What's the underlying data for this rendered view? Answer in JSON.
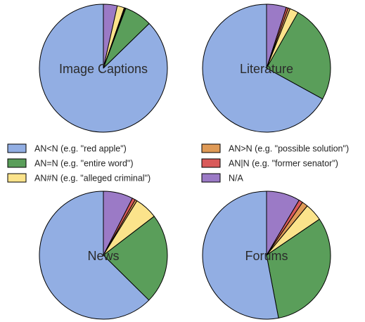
{
  "chart_data": {
    "type": "pie",
    "legend": {
      "placement": "center",
      "entries": [
        {
          "key": "an_lt_n",
          "label": "AN<N (e.g. \"red apple\")",
          "color": "#92aee3"
        },
        {
          "key": "an_eq_n",
          "label": "AN=N (e.g. \"entire word\")",
          "color": "#5a9e5a"
        },
        {
          "key": "an_neq_n",
          "label": "AN#N (e.g. \"alleged criminal\")",
          "color": "#fbe38b"
        },
        {
          "key": "an_gt_n",
          "label": "AN>N (e.g. \"possible solution\")",
          "color": "#df9a56"
        },
        {
          "key": "an_bar_n",
          "label": "AN|N (e.g. \"former senator\")",
          "color": "#d95a5a"
        },
        {
          "key": "na",
          "label": "N/A",
          "color": "#9b7ac6"
        }
      ]
    },
    "charts": [
      {
        "title": "Image Captions",
        "slices": [
          {
            "key": "na",
            "value": 3.5
          },
          {
            "key": "an_neq_n",
            "value": 1.8
          },
          {
            "key": "an_bar_n",
            "value": 0.2
          },
          {
            "key": "an_gt_n",
            "value": 0.2
          },
          {
            "key": "an_eq_n",
            "value": 7.0
          },
          {
            "key": "an_lt_n",
            "value": 87.3
          }
        ]
      },
      {
        "title": "Literature",
        "slices": [
          {
            "key": "na",
            "value": 5.0
          },
          {
            "key": "an_bar_n",
            "value": 0.5
          },
          {
            "key": "an_gt_n",
            "value": 0.5
          },
          {
            "key": "an_neq_n",
            "value": 2.2
          },
          {
            "key": "an_eq_n",
            "value": 24.8
          },
          {
            "key": "an_lt_n",
            "value": 67.0
          }
        ]
      },
      {
        "title": "News",
        "slices": [
          {
            "key": "na",
            "value": 7.5
          },
          {
            "key": "an_bar_n",
            "value": 0.8
          },
          {
            "key": "an_gt_n",
            "value": 0.5
          },
          {
            "key": "an_neq_n",
            "value": 5.8
          },
          {
            "key": "an_eq_n",
            "value": 22.8
          },
          {
            "key": "an_lt_n",
            "value": 62.6
          }
        ]
      },
      {
        "title": "Forums",
        "slices": [
          {
            "key": "na",
            "value": 8.5
          },
          {
            "key": "an_bar_n",
            "value": 1.0
          },
          {
            "key": "an_gt_n",
            "value": 1.5
          },
          {
            "key": "an_neq_n",
            "value": 4.5
          },
          {
            "key": "an_eq_n",
            "value": 31.5
          },
          {
            "key": "an_lt_n",
            "value": 53.0
          }
        ]
      }
    ]
  }
}
